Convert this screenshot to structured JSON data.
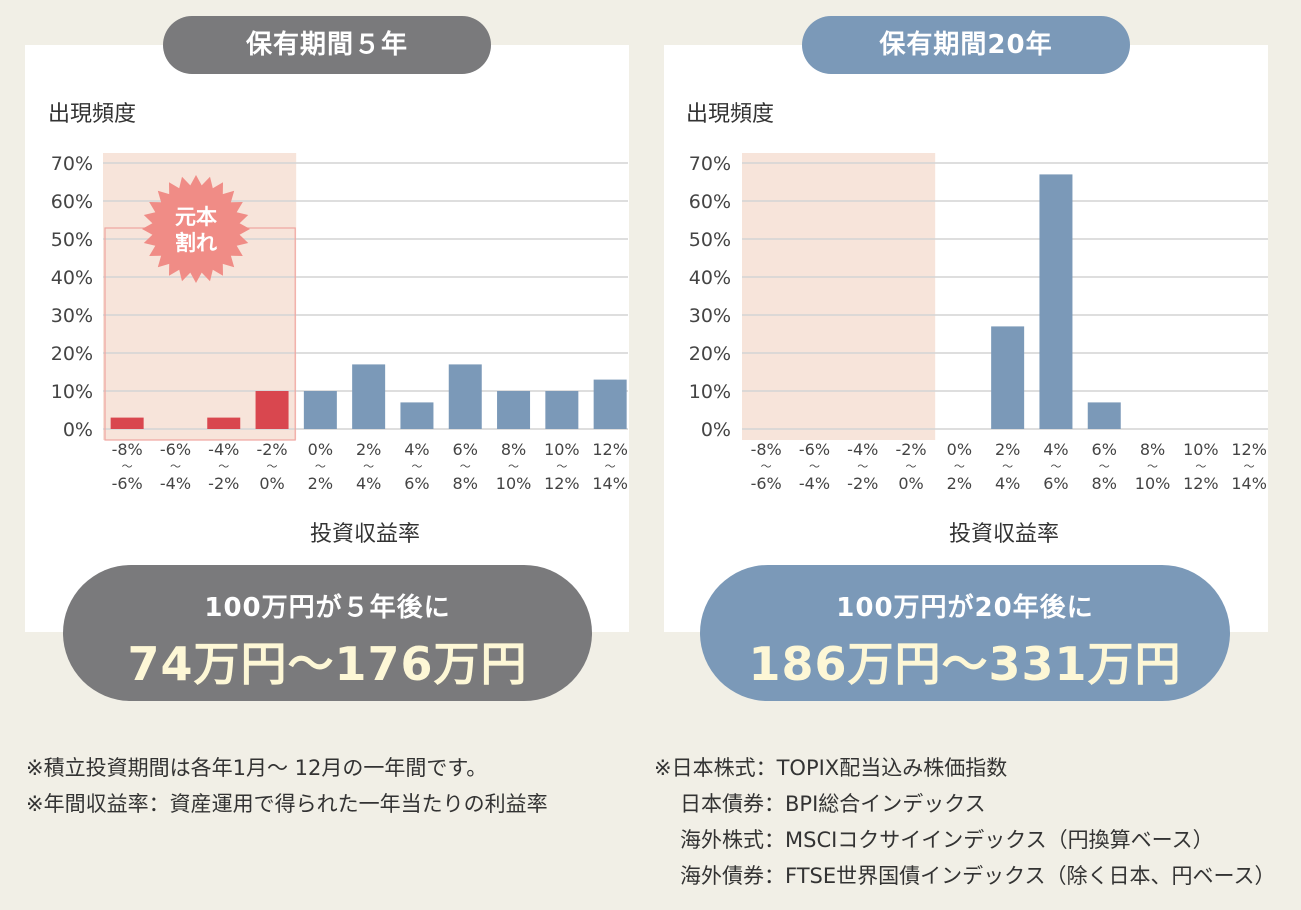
{
  "charts": [
    {
      "title": "保有期間５年",
      "result_line1": "100万円が５年後に",
      "result_line2": "74万円〜176万円",
      "burst_line1": "元本",
      "burst_line2": "割れ"
    },
    {
      "title": "保有期間20年",
      "result_line1": "100万円が20年後に",
      "result_line2": "186万円〜331万円"
    }
  ],
  "notes_left": [
    "※積立投資期間は各年1月〜 12月の一年間です。",
    "※年間収益率：資産運用で得られた一年当たりの利益率"
  ],
  "notes_right": [
    "※日本株式：TOPIX配当込み株価指数",
    "日本債券：BPI総合インデックス",
    "海外株式：MSCIコクサイインデックス（円換算ベース）",
    "海外債券：FTSE世界国債インデックス（除く日本、円ベース）"
  ],
  "colors": {
    "negative_bar": "#d9474f",
    "positive_bar": "#7b99b8",
    "loss_zone": "#f7e4da",
    "burst": "#f08c86",
    "left_accent": "#7a7a7c",
    "right_accent": "#7b99b8"
  },
  "chart_data": [
    {
      "type": "bar",
      "title": "保有期間５年",
      "ylabel": "出現頻度",
      "xlabel": "投資収益率",
      "ylim": [
        0,
        70
      ],
      "yticks": [
        "0%",
        "10%",
        "20%",
        "30%",
        "40%",
        "50%",
        "60%",
        "70%"
      ],
      "categories": [
        {
          "top": "-8%",
          "sep": "〜",
          "bottom": "-6%"
        },
        {
          "top": "-6%",
          "sep": "〜",
          "bottom": "-4%"
        },
        {
          "top": "-4%",
          "sep": "〜",
          "bottom": "-2%"
        },
        {
          "top": "-2%",
          "sep": "〜",
          "bottom": "0%"
        },
        {
          "top": "0%",
          "sep": "〜",
          "bottom": "2%"
        },
        {
          "top": "2%",
          "sep": "〜",
          "bottom": "4%"
        },
        {
          "top": "4%",
          "sep": "〜",
          "bottom": "6%"
        },
        {
          "top": "6%",
          "sep": "〜",
          "bottom": "8%"
        },
        {
          "top": "8%",
          "sep": "〜",
          "bottom": "10%"
        },
        {
          "top": "10%",
          "sep": "〜",
          "bottom": "12%"
        },
        {
          "top": "12%",
          "sep": "〜",
          "bottom": "14%"
        }
      ],
      "values": [
        3,
        0,
        3,
        10,
        10,
        17,
        7,
        17,
        10,
        10,
        13
      ],
      "loss_zone_categories": 4
    },
    {
      "type": "bar",
      "title": "保有期間20年",
      "ylabel": "出現頻度",
      "xlabel": "投資収益率",
      "ylim": [
        0,
        70
      ],
      "yticks": [
        "0%",
        "10%",
        "20%",
        "30%",
        "40%",
        "50%",
        "60%",
        "70%"
      ],
      "categories": [
        {
          "top": "-8%",
          "sep": "〜",
          "bottom": "-6%"
        },
        {
          "top": "-6%",
          "sep": "〜",
          "bottom": "-4%"
        },
        {
          "top": "-4%",
          "sep": "〜",
          "bottom": "-2%"
        },
        {
          "top": "-2%",
          "sep": "〜",
          "bottom": "0%"
        },
        {
          "top": "0%",
          "sep": "〜",
          "bottom": "2%"
        },
        {
          "top": "2%",
          "sep": "〜",
          "bottom": "4%"
        },
        {
          "top": "4%",
          "sep": "〜",
          "bottom": "6%"
        },
        {
          "top": "6%",
          "sep": "〜",
          "bottom": "8%"
        },
        {
          "top": "8%",
          "sep": "〜",
          "bottom": "10%"
        },
        {
          "top": "10%",
          "sep": "〜",
          "bottom": "12%"
        },
        {
          "top": "12%",
          "sep": "〜",
          "bottom": "14%"
        }
      ],
      "values": [
        0,
        0,
        0,
        0,
        0,
        27,
        67,
        7,
        0,
        0,
        0
      ],
      "loss_zone_categories": 4
    }
  ]
}
